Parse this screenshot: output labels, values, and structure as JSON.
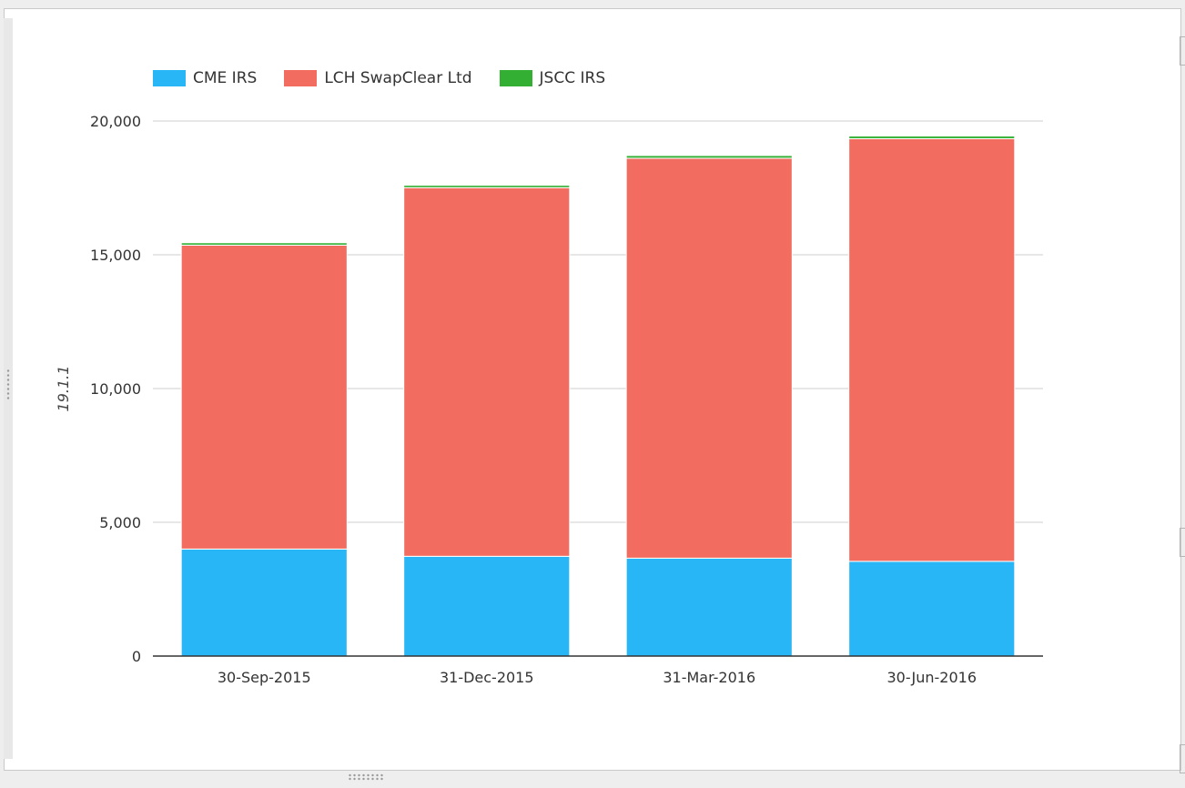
{
  "chart_data": {
    "type": "bar",
    "stacked": true,
    "categories": [
      "30-Sep-2015",
      "31-Dec-2015",
      "31-Mar-2016",
      "30-Jun-2016"
    ],
    "series": [
      {
        "name": "CME IRS",
        "color": "#29b6f6",
        "values": [
          4000,
          3730,
          3660,
          3540
        ]
      },
      {
        "name": "LCH SwapClear Ltd",
        "color": "#f26d60",
        "values": [
          11360,
          13780,
          14950,
          15800
        ]
      },
      {
        "name": "JSCC IRS",
        "color": "#33b034",
        "values": [
          90,
          90,
          100,
          100
        ]
      }
    ],
    "ylabel": "19.1.1",
    "ylim": [
      0,
      20000
    ],
    "yticks": [
      "0",
      "5,000",
      "10,000",
      "15,000",
      "20,000"
    ],
    "ytick_values": [
      0,
      5000,
      10000,
      15000,
      20000
    ],
    "grid": true,
    "legend_position": "top-left"
  }
}
